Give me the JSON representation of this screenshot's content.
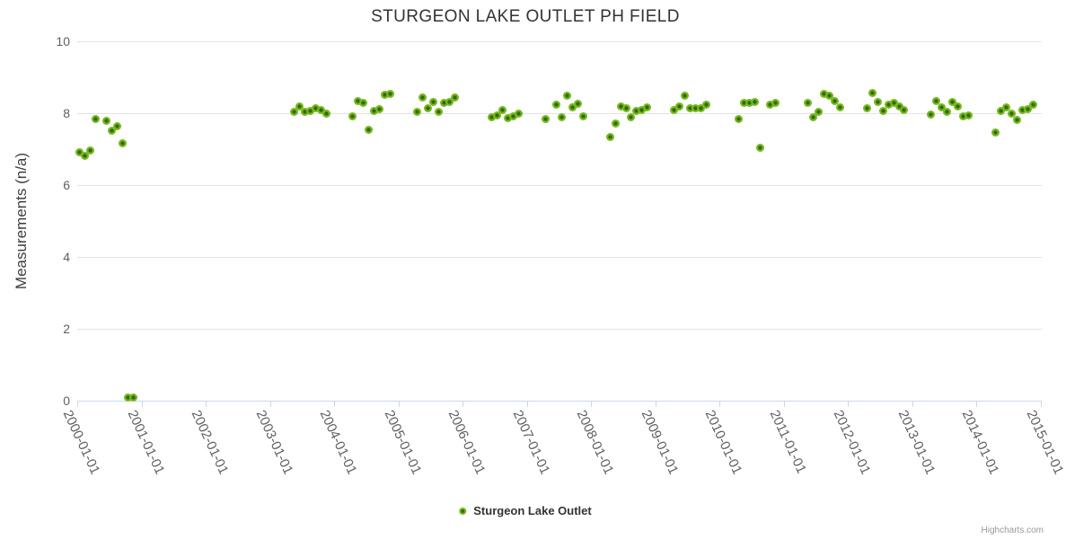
{
  "title": "STURGEON LAKE OUTLET PH FIELD",
  "legend": {
    "label": "Sturgeon Lake Outlet"
  },
  "credits": "Highcharts.com",
  "colors": {
    "marker_outer": "#77b71e",
    "marker_inner": "#2d6b00",
    "grid": "#e3e3e3",
    "axis_line": "#ccd6eb",
    "tick_label": "#606060",
    "title": "#333333"
  },
  "chart_data": {
    "type": "scatter",
    "title": "STURGEON LAKE OUTLET PH FIELD",
    "xlabel": "",
    "ylabel": "Measurements (n/a)",
    "ylim": [
      0,
      10
    ],
    "y_ticks": [
      0,
      2,
      4,
      6,
      8,
      10
    ],
    "x_tick_labels": [
      "2000-01-01",
      "2001-01-01",
      "2002-01-01",
      "2003-01-01",
      "2004-01-01",
      "2005-01-01",
      "2006-01-01",
      "2007-01-01",
      "2008-01-01",
      "2009-01-01",
      "2010-01-01",
      "2011-01-01",
      "2012-01-01",
      "2013-01-01",
      "2014-01-01",
      "2015-01-01"
    ],
    "grid": "horizontal",
    "legend_position": "bottom-center",
    "series": [
      {
        "name": "Sturgeon Lake Outlet",
        "points": [
          [
            "2000-01",
            6.9
          ],
          [
            "2000-02",
            6.82
          ],
          [
            "2000-03",
            6.97
          ],
          [
            "2000-04",
            7.84
          ],
          [
            "2000-06",
            7.79
          ],
          [
            "2000-07",
            7.51
          ],
          [
            "2000-08",
            7.63
          ],
          [
            "2000-09",
            7.17
          ],
          [
            "2000-10",
            0.08
          ],
          [
            "2000-11",
            0.08
          ],
          [
            "2003-05",
            8.04
          ],
          [
            "2003-06",
            8.19
          ],
          [
            "2003-07",
            8.04
          ],
          [
            "2003-08",
            8.07
          ],
          [
            "2003-09",
            8.13
          ],
          [
            "2003-10",
            8.09
          ],
          [
            "2003-11",
            8.0
          ],
          [
            "2004-04",
            7.92
          ],
          [
            "2004-05",
            8.34
          ],
          [
            "2004-06",
            8.28
          ],
          [
            "2004-07",
            7.55
          ],
          [
            "2004-08",
            8.05
          ],
          [
            "2004-09",
            8.11
          ],
          [
            "2004-10",
            8.51
          ],
          [
            "2004-11",
            8.54
          ],
          [
            "2005-04",
            8.04
          ],
          [
            "2005-05",
            8.43
          ],
          [
            "2005-06",
            8.13
          ],
          [
            "2005-07",
            8.32
          ],
          [
            "2005-08",
            8.03
          ],
          [
            "2005-09",
            8.29
          ],
          [
            "2005-10",
            8.32
          ],
          [
            "2005-11",
            8.43
          ],
          [
            "2006-06",
            7.88
          ],
          [
            "2006-07",
            7.94
          ],
          [
            "2006-08",
            8.08
          ],
          [
            "2006-09",
            7.86
          ],
          [
            "2006-10",
            7.92
          ],
          [
            "2006-11",
            8.0
          ],
          [
            "2007-04",
            7.84
          ],
          [
            "2007-06",
            8.25
          ],
          [
            "2007-07",
            7.9
          ],
          [
            "2007-08",
            8.5
          ],
          [
            "2007-09",
            8.15
          ],
          [
            "2007-10",
            8.26
          ],
          [
            "2007-11",
            7.92
          ],
          [
            "2008-04",
            7.34
          ],
          [
            "2008-05",
            7.71
          ],
          [
            "2008-06",
            8.19
          ],
          [
            "2008-07",
            8.13
          ],
          [
            "2008-08",
            7.88
          ],
          [
            "2008-09",
            8.07
          ],
          [
            "2008-10",
            8.08
          ],
          [
            "2008-11",
            8.15
          ],
          [
            "2009-04",
            8.08
          ],
          [
            "2009-05",
            8.19
          ],
          [
            "2009-06",
            8.5
          ],
          [
            "2009-07",
            8.13
          ],
          [
            "2009-08",
            8.13
          ],
          [
            "2009-09",
            8.13
          ],
          [
            "2009-10",
            8.25
          ],
          [
            "2010-04",
            7.83
          ],
          [
            "2010-05",
            8.28
          ],
          [
            "2010-06",
            8.28
          ],
          [
            "2010-07",
            8.3
          ],
          [
            "2010-08",
            7.05
          ],
          [
            "2010-10",
            8.25
          ],
          [
            "2010-11",
            8.29
          ],
          [
            "2011-05",
            8.28
          ],
          [
            "2011-06",
            7.88
          ],
          [
            "2011-07",
            8.04
          ],
          [
            "2011-08",
            8.53
          ],
          [
            "2011-09",
            8.5
          ],
          [
            "2011-10",
            8.33
          ],
          [
            "2011-11",
            8.17
          ],
          [
            "2012-04",
            8.13
          ],
          [
            "2012-05",
            8.57
          ],
          [
            "2012-06",
            8.3
          ],
          [
            "2012-07",
            8.07
          ],
          [
            "2012-08",
            8.25
          ],
          [
            "2012-09",
            8.28
          ],
          [
            "2012-10",
            8.19
          ],
          [
            "2012-11",
            8.08
          ],
          [
            "2013-04",
            7.97
          ],
          [
            "2013-05",
            8.33
          ],
          [
            "2013-06",
            8.15
          ],
          [
            "2013-07",
            8.03
          ],
          [
            "2013-08",
            8.32
          ],
          [
            "2013-09",
            8.19
          ],
          [
            "2013-10",
            7.92
          ],
          [
            "2013-11",
            7.94
          ],
          [
            "2014-04",
            7.47
          ],
          [
            "2014-05",
            8.07
          ],
          [
            "2014-06",
            8.15
          ],
          [
            "2014-07",
            7.98
          ],
          [
            "2014-08",
            7.82
          ],
          [
            "2014-09",
            8.08
          ],
          [
            "2014-10",
            8.11
          ],
          [
            "2014-11",
            8.25
          ]
        ]
      }
    ]
  }
}
